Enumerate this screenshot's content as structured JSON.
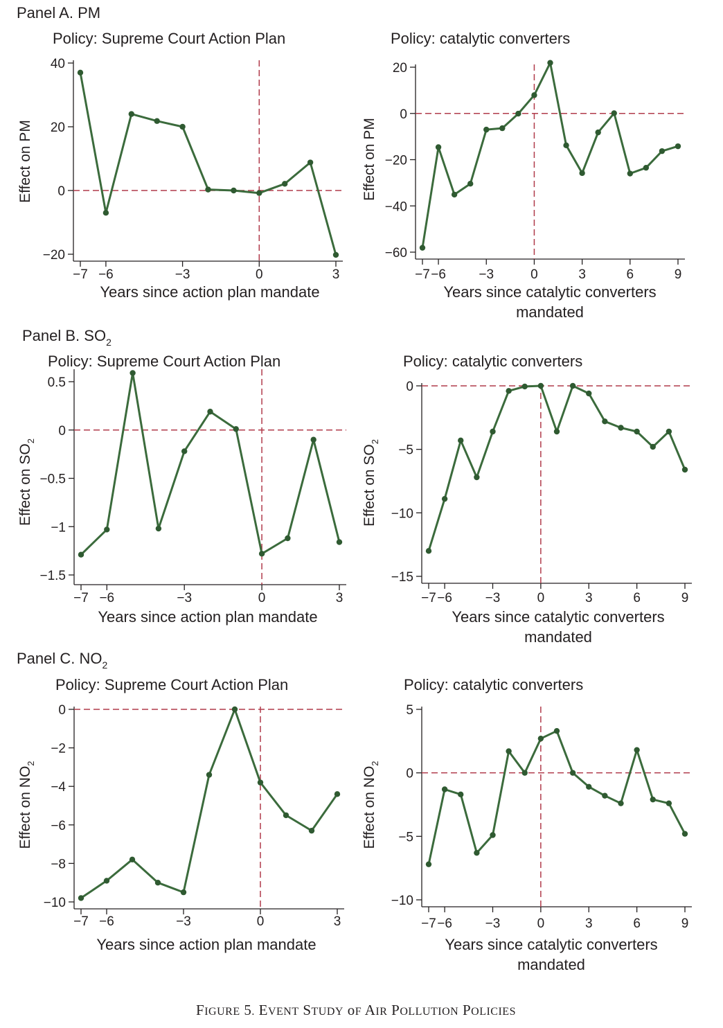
{
  "panels": [
    {
      "label": "Panel A. PM",
      "pollutant_prefix": "Panel A. PM",
      "pollutant_sub": ""
    },
    {
      "label": "Panel B. SO2",
      "pollutant_prefix": "Panel B. SO",
      "pollutant_sub": "2"
    },
    {
      "label": "Panel C. NO2",
      "pollutant_prefix": "Panel C. NO",
      "pollutant_sub": "2"
    }
  ],
  "caption": "Figure 5. Event Study of Air Pollution Policies",
  "colors": {
    "line": "#3b6b3c",
    "marker": "#2f5a31",
    "ref": "#b03a4a",
    "axis": "#231f20"
  },
  "chart_data": [
    {
      "type": "line",
      "title": "Policy:  Supreme Court Action Plan",
      "xlabel": [
        "Years since action plan mandate"
      ],
      "ylabel": "Effect on PM",
      "ylabel_main": "Effect on PM",
      "ylabel_sub": "",
      "xlim": [
        -7,
        3
      ],
      "ylim": [
        -20,
        40
      ],
      "xticks": [
        -7,
        -6,
        -3,
        0,
        3
      ],
      "xtick_labels": [
        "−7",
        "−6",
        "−3",
        "0",
        "3"
      ],
      "yticks": [
        -20,
        0,
        20,
        40
      ],
      "ytick_labels": [
        "−20",
        "0",
        "20",
        "40"
      ],
      "ref_x": 0,
      "ref_y": 0,
      "series": [
        {
          "x": [
            -7,
            -6,
            -5,
            -4,
            -3,
            -2,
            -1,
            0,
            1,
            2,
            3
          ],
          "y": [
            37.0,
            -7.0,
            24.0,
            21.8,
            20.0,
            0.3,
            0,
            -0.8,
            2.1,
            8.8,
            -20.2
          ]
        }
      ]
    },
    {
      "type": "line",
      "title": "Policy:  catalytic converters",
      "xlabel": [
        "Years since catalytic converters",
        "mandated"
      ],
      "ylabel": "Effect on PM",
      "ylabel_main": "Effect on PM",
      "ylabel_sub": "",
      "xlim": [
        -7,
        9
      ],
      "ylim": [
        -60,
        20
      ],
      "xticks": [
        -7,
        -6,
        -3,
        0,
        3,
        6,
        9
      ],
      "xtick_labels": [
        "−7",
        "−6",
        "−3",
        "0",
        "3",
        "6",
        "9"
      ],
      "yticks": [
        -60,
        -40,
        -20,
        0,
        20
      ],
      "ytick_labels": [
        "−60",
        "−40",
        "−20",
        "0",
        "20"
      ],
      "ref_x": 0,
      "ref_y": 0,
      "series": [
        {
          "x": [
            -7,
            -6,
            -5,
            -4,
            -3,
            -2,
            -1,
            0,
            1,
            2,
            3,
            4,
            5,
            6,
            7,
            8,
            9
          ],
          "y": [
            -58.1,
            -14.6,
            -35.1,
            -30.4,
            -7.0,
            -6.4,
            -0.1,
            7.9,
            21.9,
            -13.8,
            -25.8,
            -8.2,
            0.1,
            -26.0,
            -23.5,
            -16.3,
            -14.2
          ]
        }
      ]
    },
    {
      "type": "line",
      "title": "Policy:  Supreme Court Action Plan",
      "xlabel": [
        "Years since action plan mandate"
      ],
      "ylabel": "Effect on SO2",
      "ylabel_main": "Effect on SO",
      "ylabel_sub": "2",
      "xlim": [
        -7,
        3
      ],
      "ylim": [
        -1.5,
        0.6
      ],
      "xticks": [
        -7,
        -6,
        -3,
        0,
        3
      ],
      "xtick_labels": [
        "−7",
        "−6",
        "−3",
        "0",
        "3"
      ],
      "yticks": [
        -1.5,
        -1,
        -0.5,
        0,
        0.5
      ],
      "ytick_labels": [
        "−1.5",
        "−1",
        "−0.5",
        "0",
        "0.5"
      ],
      "ref_x": 0,
      "ref_y": 0,
      "series": [
        {
          "x": [
            -7,
            -6,
            -5,
            -4,
            -3,
            -2,
            -1,
            0,
            1,
            2,
            3
          ],
          "y": [
            -1.29,
            -1.03,
            0.59,
            -1.02,
            -0.22,
            0.19,
            0.01,
            -1.28,
            -1.12,
            -0.1,
            -1.16
          ]
        }
      ]
    },
    {
      "type": "line",
      "title": "Policy:  catalytic converters",
      "xlabel": [
        "Years since catalytic converters",
        "mandated"
      ],
      "ylabel": "Effect on SO2",
      "ylabel_main": "Effect on SO",
      "ylabel_sub": "2",
      "xlim": [
        -7,
        9
      ],
      "ylim": [
        -15,
        0
      ],
      "xticks": [
        -7,
        -6,
        -3,
        0,
        3,
        6,
        9
      ],
      "xtick_labels": [
        "−7",
        "−6",
        "−3",
        "0",
        "3",
        "6",
        "9"
      ],
      "yticks": [
        -15,
        -10,
        -5,
        0
      ],
      "ytick_labels": [
        "−15",
        "−10",
        "−5",
        "0"
      ],
      "ref_x": 0,
      "ref_y": 0,
      "series": [
        {
          "x": [
            -7,
            -6,
            -5,
            -4,
            -3,
            -2,
            -1,
            0,
            1,
            2,
            3,
            4,
            5,
            6,
            7,
            8,
            9
          ],
          "y": [
            -13.0,
            -8.9,
            -4.3,
            -7.2,
            -3.6,
            -0.4,
            -0.05,
            0.0,
            -3.6,
            0.0,
            -0.6,
            -2.8,
            -3.3,
            -3.6,
            -4.8,
            -3.6,
            -6.6
          ]
        }
      ]
    },
    {
      "type": "line",
      "title": "Policy:  Supreme Court Action Plan",
      "xlabel": [
        "Years since action plan mandate"
      ],
      "ylabel": "Effect on NO2",
      "ylabel_main": "Effect on NO",
      "ylabel_sub": "2",
      "xlim": [
        -7,
        3
      ],
      "ylim": [
        -10,
        0
      ],
      "xticks": [
        -7,
        -6,
        -3,
        0,
        3
      ],
      "xtick_labels": [
        "−7",
        "−6",
        "−3",
        "0",
        "3"
      ],
      "yticks": [
        -10,
        -8,
        -6,
        -4,
        -2,
        0
      ],
      "ytick_labels": [
        "−10",
        "−8",
        "−6",
        "−4",
        "−2",
        "0"
      ],
      "ref_x": 0,
      "ref_y": 0,
      "series": [
        {
          "x": [
            -7,
            -6,
            -5,
            -4,
            -3,
            -2,
            -1,
            0,
            1,
            2,
            3
          ],
          "y": [
            -9.8,
            -8.9,
            -7.8,
            -9.0,
            -9.5,
            -3.4,
            0.0,
            -3.8,
            -5.5,
            -6.3,
            -4.4
          ]
        }
      ]
    },
    {
      "type": "line",
      "title": "Policy:  catalytic converters",
      "xlabel": [
        "Years since catalytic converters",
        "mandated"
      ],
      "ylabel": "Effect on NO2",
      "ylabel_main": "Effect on NO",
      "ylabel_sub": "2",
      "xlim": [
        -7,
        9
      ],
      "ylim": [
        -10,
        5
      ],
      "xticks": [
        -7,
        -6,
        -3,
        0,
        3,
        6,
        9
      ],
      "xtick_labels": [
        "−7",
        "−6",
        "−3",
        "0",
        "3",
        "6",
        "9"
      ],
      "yticks": [
        -10,
        -5,
        0,
        5
      ],
      "ytick_labels": [
        "−10",
        "−5",
        "0",
        "5"
      ],
      "ref_x": 0,
      "ref_y": 0,
      "series": [
        {
          "x": [
            -7,
            -6,
            -5,
            -4,
            -3,
            -2,
            -1,
            0,
            1,
            2,
            3,
            4,
            5,
            6,
            7,
            8,
            9
          ],
          "y": [
            -7.2,
            -1.3,
            -1.7,
            -6.3,
            -4.9,
            1.7,
            0.0,
            2.7,
            3.3,
            0.0,
            -1.1,
            -1.8,
            -2.4,
            1.8,
            -2.1,
            -2.4,
            -4.8
          ]
        }
      ]
    }
  ]
}
